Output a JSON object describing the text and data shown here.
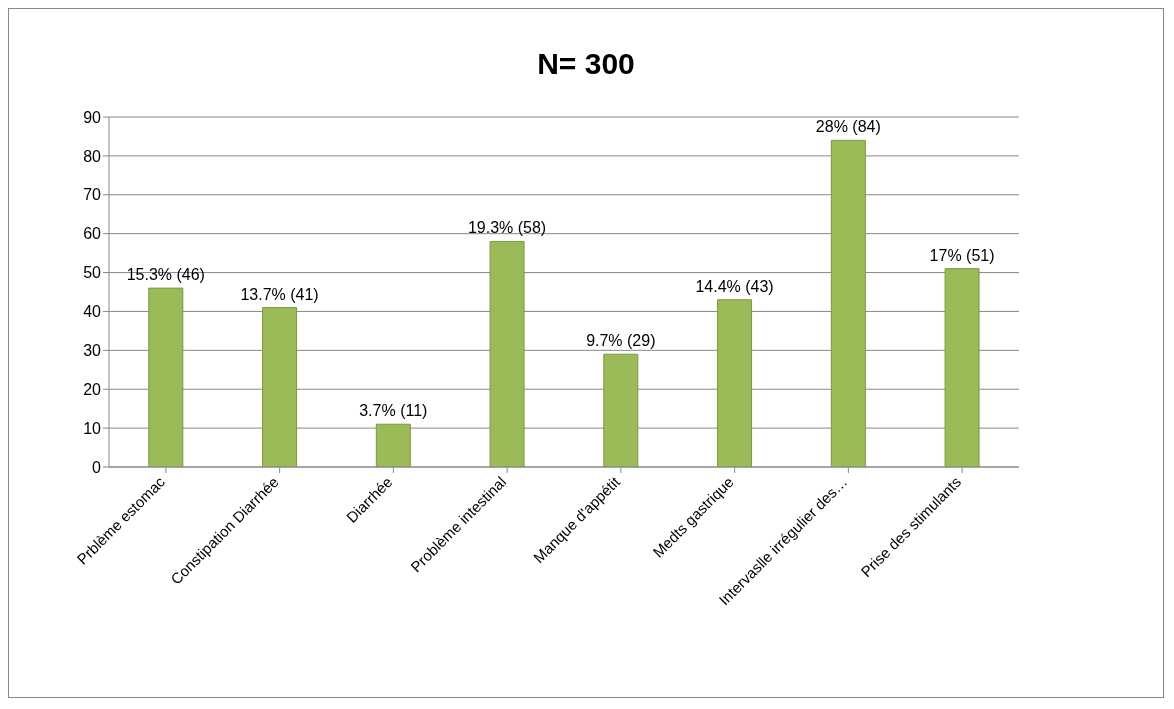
{
  "chart_data": {
    "type": "bar",
    "title": "N= 300",
    "categories": [
      "Prblème estomac",
      "Constipation Diarrhée",
      "Diarrhée",
      "Problème intestinal",
      "Manque d'appétit",
      "Medts gastrique",
      "Intervaslle irrégulier des…",
      "Prise des stimulants"
    ],
    "values": [
      46,
      41,
      11,
      58,
      29,
      43,
      84,
      51
    ],
    "value_labels": [
      "15.3% (46)",
      "13.7% (41)",
      "3.7% (11)",
      "19.3% (58)",
      "9.7% (29)",
      "14.4% (43)",
      "28% (84)",
      "17% (51)"
    ],
    "color": "#9bbb59",
    "ylim": [
      0,
      90
    ],
    "yticks": [
      0,
      10,
      20,
      30,
      40,
      50,
      60,
      70,
      80,
      90
    ],
    "grid": "y",
    "legend": false
  }
}
